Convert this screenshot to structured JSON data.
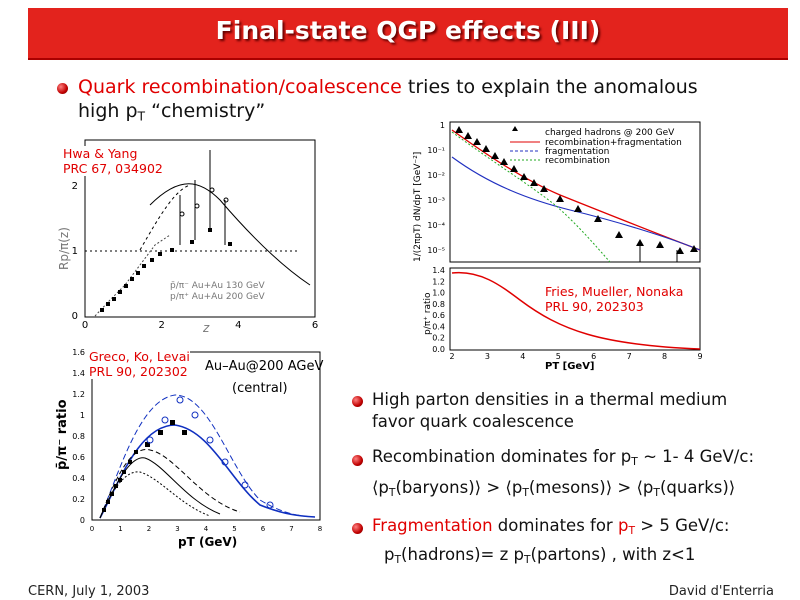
{
  "header": {
    "title": "Final-state QGP effects (III)"
  },
  "bullets": [
    [
      "Quark recombination/coalescence",
      " tries to explain the anomalous",
      "high p",
      "T",
      " “chemistry”"
    ],
    [
      "High parton densities in a thermal medium",
      "favor quark coalescence"
    ],
    [
      "Recombination dominates for p",
      "T",
      " ~ 1- 4 GeV/c:",
      "⟨p",
      "T",
      "(baryons)⟩ > ⟨p",
      "T",
      "(mesons)⟩ > ⟨p",
      "T",
      "(quarks)⟩"
    ],
    [
      "Fragmentation",
      " dominates for ",
      "p",
      "T",
      " > 5 GeV/c:",
      "p",
      "T",
      "(hadrons)= z p",
      "T",
      "(partons) , with z<1"
    ]
  ],
  "figures": [
    {
      "citation": [
        "Hwa & Yang",
        "PRC 67, 034902"
      ],
      "y_label": "Rp/π(z)",
      "x_label": "z",
      "xticks": [
        "0",
        "2",
        "4",
        "6"
      ],
      "yticks": [
        "0",
        "1",
        "2"
      ],
      "legend": [
        "p̄/π⁻ Au+Au 130 GeV",
        "p/π⁺ Au+Au 200 GeV"
      ]
    },
    {
      "citation": [
        "Fries, Mueller, Nonaka",
        "PRL 90, 202303"
      ],
      "y_label": "1/(2πpT) dN/dpT [GeV⁻²]",
      "y2_label": "p/π⁺ ratio",
      "x_label": "PT [GeV]",
      "yticks": [
        "1",
        "10⁻¹",
        "10⁻²",
        "10⁻³",
        "10⁻⁴",
        "10⁻⁵"
      ],
      "y2ticks": [
        "1.4",
        "1.2",
        "1.0",
        "0.8",
        "0.6",
        "0.4",
        "0.2",
        "0.0"
      ],
      "xticks": [
        "2",
        "3",
        "4",
        "5",
        "6",
        "7",
        "8",
        "9"
      ],
      "legend": [
        "charged hadrons @ 200 GeV",
        "recombination+fragmentation",
        "fragmentation",
        "recombination"
      ]
    },
    {
      "citation": [
        "Greco, Ko, Levai",
        "PRL 90, 202302"
      ],
      "annotation": [
        "Au–Au@200 AGeV",
        "(central)"
      ],
      "y_label": "p̄/π⁻ ratio",
      "x_label": "pT (GeV)",
      "yticks": [
        "1.6",
        "1.4",
        "1.2",
        "1",
        "0.8",
        "0.6",
        "0.4",
        "0.2",
        "0"
      ],
      "xticks": [
        "0",
        "1",
        "2",
        "3",
        "4",
        "5",
        "6",
        "7",
        "8"
      ]
    }
  ],
  "footer": {
    "left": "CERN, July 1, 2003",
    "right": "David d'Enterria"
  }
}
